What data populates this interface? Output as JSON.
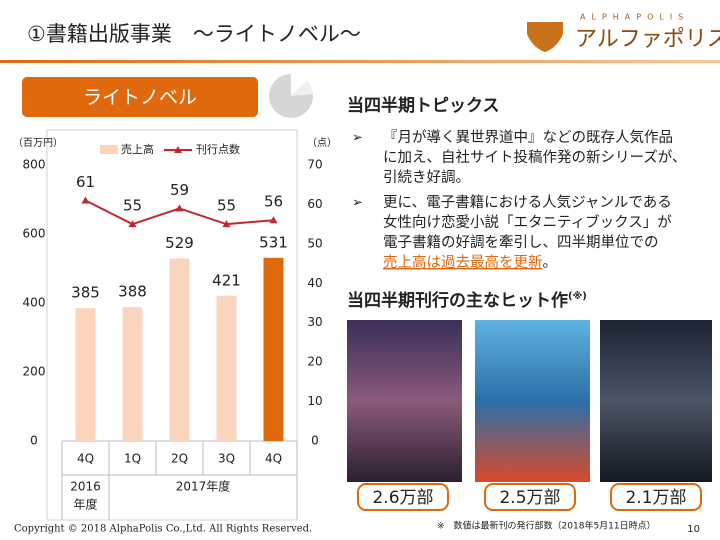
{
  "header": {
    "title": "①書籍出版事業　～ライトノベル～",
    "logo_en": "ALPHAPOLIS",
    "logo_ja": "アルファポリス"
  },
  "section_label": "ライトノベル",
  "chart_data": {
    "type": "combo",
    "y_unit": "（百万円）",
    "y2_unit": "（点）",
    "categories": [
      "4Q",
      "1Q",
      "2Q",
      "3Q",
      "4Q"
    ],
    "x_groups": [
      {
        "lines": [
          "2016",
          "年度"
        ],
        "span": 1
      },
      {
        "lines": [
          "2017年度"
        ],
        "span": 4
      }
    ],
    "series": [
      {
        "name": "売上高",
        "color": "#fad4bd",
        "colors": [
          "#fad4bd",
          "#fad4bd",
          "#fad4bd",
          "#fad4bd",
          "#e0690e"
        ],
        "values": [
          385,
          388,
          529,
          421,
          531
        ]
      },
      {
        "name": "刊行点数",
        "color": "#c2262e",
        "axis": "y2",
        "values": [
          61,
          55,
          59,
          55,
          56
        ]
      }
    ],
    "ylim": [
      0,
      800
    ],
    "yticks": [
      0,
      200,
      400,
      600,
      800
    ],
    "y2lim": [
      0,
      70
    ],
    "y2ticks": [
      0,
      10,
      20,
      30,
      40,
      50,
      60,
      70
    ]
  },
  "topics": {
    "heading": "当四半期トピックス",
    "bullets": [
      {
        "lines": [
          "『月が導く異世界道中』などの既存人気作品",
          "に加え、自社サイト投稿作発の新シリーズが、",
          "引続き好調。"
        ]
      },
      {
        "lines": [
          "更に、電子書籍における人気ジャンルである",
          "女性向け恋愛小説「エタニティブックス」が",
          "電子書籍の好調を牽引し、四半期単位での"
        ],
        "highlight": "売上高は過去最高を更新",
        "tail": "。"
      }
    ]
  },
  "hits": {
    "heading": "当四半期刊行の主なヒット作",
    "note_mark": "(※)",
    "books": [
      {
        "badge": "2.6万部"
      },
      {
        "badge": "2.5万部"
      },
      {
        "badge": "2.1万部"
      }
    ]
  },
  "footer": {
    "copyright": "Copyright © 2018 AlphaPolis Co.,Ltd.  All Rights Reserved.",
    "note": "※　数値は最新刊の発行部数（2018年5月11日時点）",
    "page": "10"
  }
}
